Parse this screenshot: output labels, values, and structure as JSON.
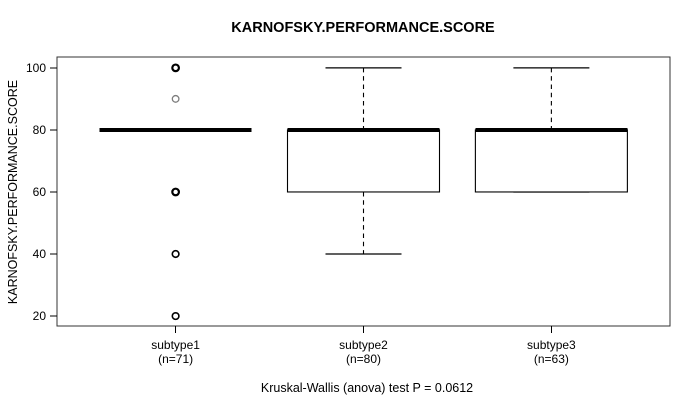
{
  "chart_data": {
    "type": "boxplot",
    "title": "KARNOFSKY.PERFORMANCE.SCORE",
    "ylabel": "KARNOFSKY.PERFORMANCE.SCORE",
    "caption": "Kruskal-Wallis (anova) test P = 0.0612",
    "yticks": [
      20,
      40,
      60,
      80,
      100
    ],
    "ylim": [
      16.8,
      103.5
    ],
    "grid": false,
    "legend": null,
    "groups": [
      {
        "label": "subtype1",
        "count_label": "(n=71)",
        "q1": 80,
        "median": 80,
        "q3": 80,
        "whisker_low": 80,
        "whisker_high": 80,
        "outliers": [
          {
            "value": 100,
            "muted": false,
            "bold": true
          },
          {
            "value": 90,
            "muted": true,
            "bold": false
          },
          {
            "value": 60,
            "muted": false,
            "bold": true
          },
          {
            "value": 40,
            "muted": false,
            "bold": false
          },
          {
            "value": 20,
            "muted": false,
            "bold": false
          }
        ]
      },
      {
        "label": "subtype2",
        "count_label": "(n=80)",
        "q1": 60,
        "median": 80,
        "q3": 80,
        "whisker_low": 40,
        "whisker_high": 100,
        "outliers": []
      },
      {
        "label": "subtype3",
        "count_label": "(n=63)",
        "q1": 60,
        "median": 80,
        "q3": 80,
        "whisker_low": 60,
        "whisker_high": 100,
        "outliers": []
      }
    ],
    "colors": {
      "line": "#000000",
      "frame": "#333333",
      "muted_outlier": "#7d7d7d",
      "background": "#ffffff"
    }
  }
}
